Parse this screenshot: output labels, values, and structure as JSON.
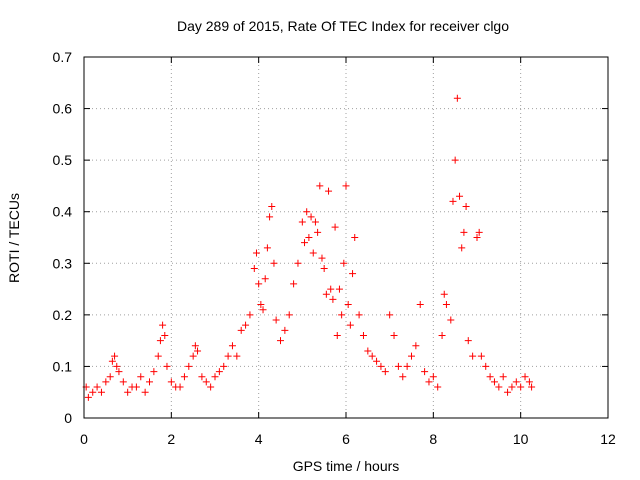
{
  "chart_data": {
    "type": "scatter",
    "title": "Day 289 of 2015, Rate Of TEC Index for receiver clgo",
    "xlabel": "GPS time / hours",
    "ylabel": "ROTI / TECUs",
    "xlim": [
      0,
      12
    ],
    "ylim": [
      0,
      0.7
    ],
    "x_ticks": [
      0,
      2,
      4,
      6,
      8,
      10,
      12
    ],
    "y_ticks": [
      0,
      0.1,
      0.2,
      0.3,
      0.4,
      0.5,
      0.6,
      0.7
    ],
    "x_tick_labels": [
      "0",
      "2",
      "4",
      "6",
      "8",
      "10",
      "12"
    ],
    "y_tick_labels": [
      "0",
      "0.1",
      "0.2",
      "0.3",
      "0.4",
      "0.5",
      "0.6",
      "0.7"
    ],
    "grid": true,
    "marker": "+",
    "series": [
      {
        "color": "#ff0000",
        "x": [
          0.05,
          0.1,
          0.2,
          0.3,
          0.4,
          0.5,
          0.6,
          0.65,
          0.7,
          0.75,
          0.8,
          0.9,
          1.0,
          1.1,
          1.2,
          1.3,
          1.4,
          1.5,
          1.6,
          1.7,
          1.75,
          1.8,
          1.85,
          1.9,
          2.0,
          2.1,
          2.2,
          2.3,
          2.4,
          2.5,
          2.55,
          2.6,
          2.7,
          2.8,
          2.9,
          3.0,
          3.1,
          3.2,
          3.3,
          3.4,
          3.5,
          3.6,
          3.7,
          3.8,
          3.9,
          3.95,
          4.0,
          4.05,
          4.1,
          4.15,
          4.2,
          4.25,
          4.3,
          4.35,
          4.4,
          4.5,
          4.6,
          4.7,
          4.8,
          4.9,
          5.0,
          5.05,
          5.1,
          5.15,
          5.2,
          5.25,
          5.3,
          5.35,
          5.4,
          5.45,
          5.5,
          5.55,
          5.6,
          5.65,
          5.7,
          5.75,
          5.8,
          5.85,
          5.9,
          5.95,
          6.0,
          6.05,
          6.1,
          6.15,
          6.2,
          6.3,
          6.4,
          6.5,
          6.6,
          6.7,
          6.8,
          6.9,
          7.0,
          7.1,
          7.2,
          7.3,
          7.4,
          7.5,
          7.6,
          7.7,
          7.8,
          7.9,
          8.0,
          8.1,
          8.2,
          8.25,
          8.3,
          8.4,
          8.45,
          8.5,
          8.55,
          8.6,
          8.65,
          8.7,
          8.75,
          8.8,
          8.9,
          9.0,
          9.05,
          9.1,
          9.2,
          9.3,
          9.4,
          9.5,
          9.6,
          9.7,
          9.8,
          9.9,
          10.0,
          10.1,
          10.2,
          10.25
        ],
        "y": [
          0.06,
          0.04,
          0.05,
          0.06,
          0.05,
          0.07,
          0.08,
          0.11,
          0.12,
          0.1,
          0.09,
          0.07,
          0.05,
          0.06,
          0.06,
          0.08,
          0.05,
          0.07,
          0.09,
          0.12,
          0.15,
          0.18,
          0.16,
          0.1,
          0.07,
          0.06,
          0.06,
          0.08,
          0.1,
          0.12,
          0.14,
          0.13,
          0.08,
          0.07,
          0.06,
          0.08,
          0.09,
          0.1,
          0.12,
          0.14,
          0.12,
          0.17,
          0.18,
          0.2,
          0.29,
          0.32,
          0.26,
          0.22,
          0.21,
          0.27,
          0.33,
          0.39,
          0.41,
          0.3,
          0.19,
          0.15,
          0.17,
          0.2,
          0.26,
          0.3,
          0.38,
          0.34,
          0.4,
          0.35,
          0.39,
          0.32,
          0.38,
          0.36,
          0.45,
          0.31,
          0.29,
          0.24,
          0.44,
          0.25,
          0.23,
          0.37,
          0.16,
          0.25,
          0.2,
          0.3,
          0.45,
          0.22,
          0.18,
          0.28,
          0.35,
          0.2,
          0.16,
          0.13,
          0.12,
          0.11,
          0.1,
          0.09,
          0.2,
          0.16,
          0.1,
          0.08,
          0.1,
          0.12,
          0.14,
          0.22,
          0.09,
          0.07,
          0.08,
          0.06,
          0.16,
          0.24,
          0.22,
          0.19,
          0.42,
          0.5,
          0.62,
          0.43,
          0.33,
          0.36,
          0.41,
          0.15,
          0.12,
          0.35,
          0.36,
          0.12,
          0.1,
          0.08,
          0.07,
          0.06,
          0.08,
          0.05,
          0.06,
          0.07,
          0.06,
          0.08,
          0.07,
          0.06
        ]
      }
    ]
  }
}
